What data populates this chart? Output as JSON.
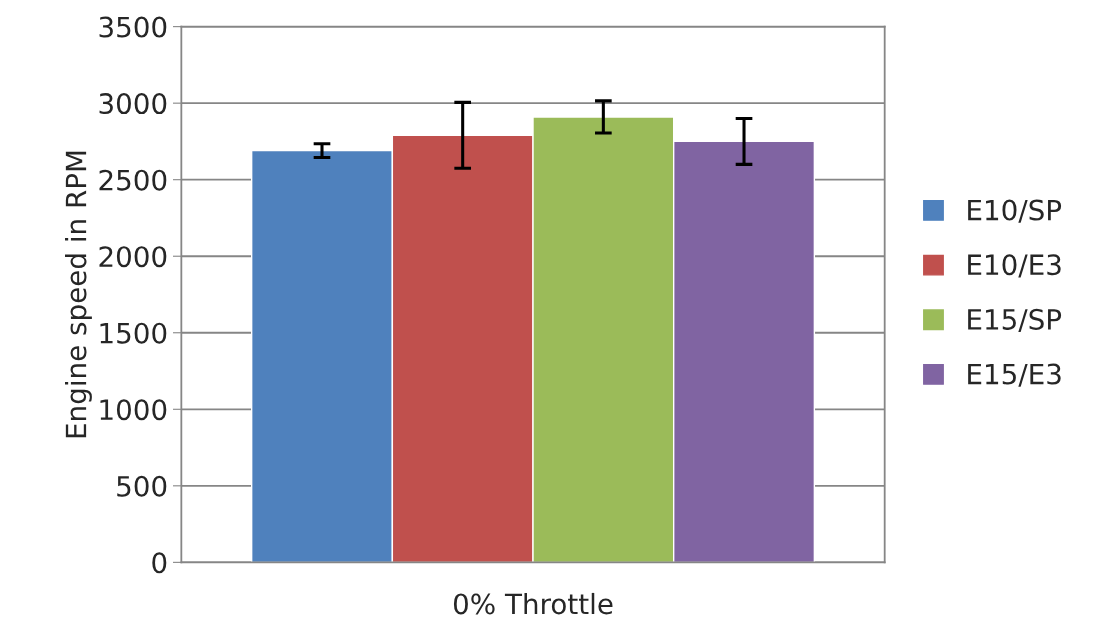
{
  "chart_data": {
    "type": "bar",
    "ylabel": "Engine speed in RPM",
    "categories": [
      "0% Throttle"
    ],
    "series": [
      {
        "name": "E10/SP",
        "color": "#4f81bd",
        "values": [
          2690
        ],
        "errors": [
          45
        ]
      },
      {
        "name": "E10/E3",
        "color": "#c0504d",
        "values": [
          2790
        ],
        "errors": [
          215
        ]
      },
      {
        "name": "E15/SP",
        "color": "#9bbb59",
        "values": [
          2910
        ],
        "errors": [
          105
        ]
      },
      {
        "name": "E15/E3",
        "color": "#8064a2",
        "values": [
          2750
        ],
        "errors": [
          150
        ]
      }
    ],
    "ylim": [
      0,
      3500
    ],
    "yticks": [
      0,
      500,
      1000,
      1500,
      2000,
      2500,
      3000,
      3500
    ],
    "grid": "y",
    "legend": "right"
  }
}
